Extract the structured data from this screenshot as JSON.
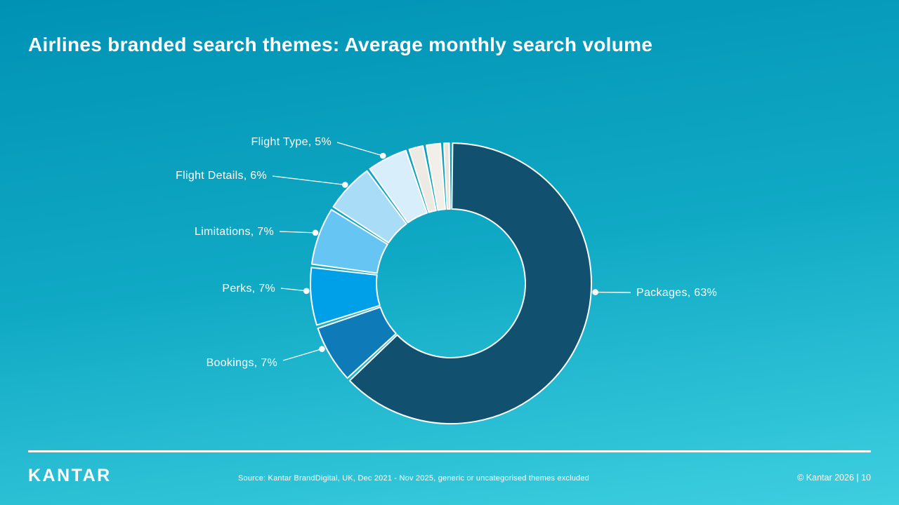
{
  "slide": {
    "title": "Airlines branded search themes: Average monthly search volume",
    "footer": {
      "logo": "KANTAR",
      "source": "Source: Kantar BrandDigital, UK, Dec 2021 - Nov 2025, generic or uncategorised themes excluded",
      "copyright": "© Kantar 2026 | 10"
    }
  },
  "colors": {
    "background_top": "#0092b5",
    "background_bottom": "#3ecfe0",
    "stroke": "#ffffff",
    "label_text": "#ffffff"
  },
  "chart_data": {
    "type": "pie",
    "donut": true,
    "title": "Airlines branded search themes: Average monthly search volume",
    "legend": "none",
    "labels_position": "outside-with-leader-lines",
    "label_format": "{label}, {value}%",
    "segments": [
      {
        "label": "Packages",
        "value": 63,
        "color": "#11506e",
        "label_side": "right",
        "label_angle_deg": 93.5
      },
      {
        "label": "Bookings",
        "value": 7,
        "color": "#0e7ab8",
        "label_side": "left",
        "label_angle_deg": 243
      },
      {
        "label": "Perks",
        "value": 7,
        "color": "#00a0e9",
        "label_side": "left",
        "label_angle_deg": 267
      },
      {
        "label": "Limitations",
        "value": 7,
        "color": "#66c5f2",
        "label_side": "left",
        "label_angle_deg": 290.5
      },
      {
        "label": "Flight Details",
        "value": 6,
        "color": "#a9dcf7",
        "label_side": "left",
        "label_angle_deg": 313
      },
      {
        "label": "Flight Type",
        "value": 5,
        "color": "#d9eefb",
        "label_side": "left",
        "label_angle_deg": 332
      },
      {
        "label": null,
        "value": 2,
        "color": "#edeae3"
      },
      {
        "label": null,
        "value": 2,
        "color": "#f2efe9"
      },
      {
        "label": null,
        "value": 1,
        "color": "#e8e4dc"
      }
    ]
  }
}
